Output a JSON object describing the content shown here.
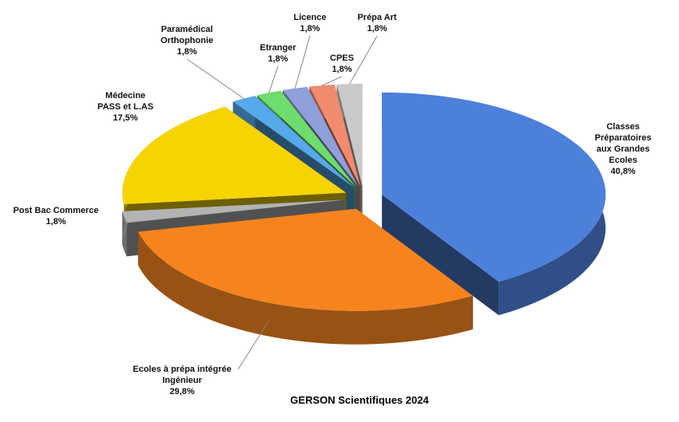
{
  "chart_data": {
    "type": "pie3d",
    "title": "GERSON Scientifiques 2024",
    "categories": [
      "Classes Préparatoires\naux Grandes Ecoles",
      "Ecoles à prépa intégrée\nIngénieur",
      "Post Bac Commerce",
      "Médecine\nPASS et L.AS",
      "Paramédical\nOrthophonie",
      "Etranger",
      "Licence",
      "CPES",
      "Prépa Art"
    ],
    "values": [
      40.8,
      29.8,
      1.8,
      17.5,
      1.8,
      1.8,
      1.8,
      1.8,
      1.8
    ],
    "value_labels": [
      "40,8%",
      "29,8%",
      "1,8%",
      "17,5%",
      "1,8%",
      "1,8%",
      "1,8%",
      "1,8%",
      "1,8%"
    ],
    "colors": [
      "#4d80db",
      "#f5841f",
      "#b3b3b3",
      "#f5d400",
      "#56a9ea",
      "#6edc6e",
      "#8f9fd9",
      "#f28a6e",
      "#c9c9c9"
    ]
  }
}
